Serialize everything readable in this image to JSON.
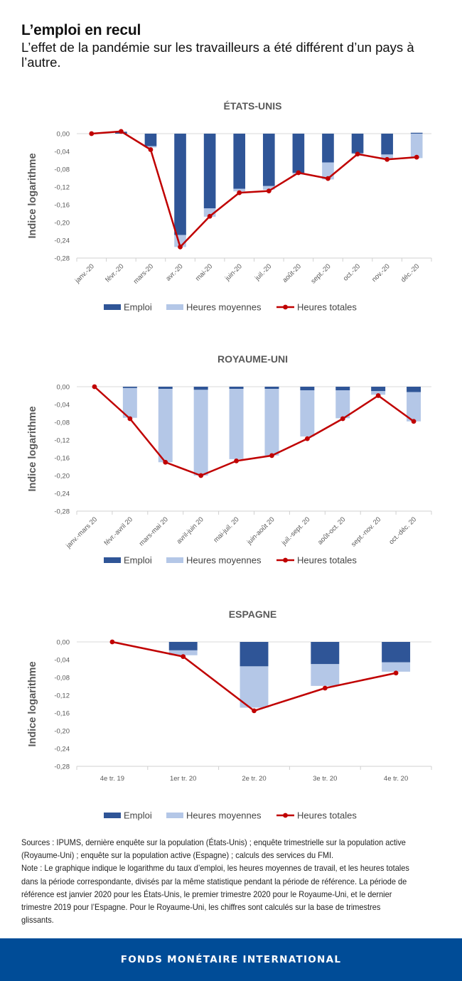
{
  "header": {
    "title": "L’emploi en recul",
    "subtitle": "L’effet de la pandémie sur les travailleurs a été différent d’un pays à l’autre."
  },
  "colors": {
    "emploi": "#2f5597",
    "heures_moyennes": "#b4c7e7",
    "heures_totales": "#c00000",
    "footer": "#004c97"
  },
  "chart_data": [
    {
      "type": "bar",
      "title": "ÉTATS-UNIS",
      "ylabel": "Indice logarithme",
      "ylim": [
        -0.28,
        0.0
      ],
      "yticks": [
        "0,00",
        "-0,04",
        "-0,08",
        "-0,12",
        "-0,16",
        "-0,20",
        "-0,24",
        "-0,28"
      ],
      "categories": [
        "janv.-20",
        "févr.-20",
        "mars-20",
        "avr.-20",
        "mai-20",
        "juin-20",
        "juil.-20",
        "août-20",
        "sept.-20",
        "oct.-20",
        "nov.-20",
        "déc.-20"
      ],
      "series": [
        {
          "name": "Emploi",
          "type": "bar",
          "values": [
            0.0,
            0.004,
            -0.028,
            -0.228,
            -0.168,
            -0.124,
            -0.118,
            -0.088,
            -0.065,
            -0.044,
            -0.047,
            0.002
          ]
        },
        {
          "name": "Heures moyennes",
          "type": "bar",
          "values": [
            0.0,
            0.001,
            -0.003,
            -0.027,
            -0.019,
            -0.006,
            -0.008,
            -0.004,
            -0.038,
            -0.002,
            -0.009,
            -0.055
          ]
        },
        {
          "name": "Heures totales",
          "type": "line",
          "values": [
            0.0,
            0.005,
            -0.036,
            -0.255,
            -0.186,
            -0.133,
            -0.129,
            -0.088,
            -0.101,
            -0.046,
            -0.058,
            -0.053
          ]
        }
      ],
      "legend": [
        "Emploi",
        "Heures moyennes",
        "Heures totales"
      ],
      "rotate_ticks": true
    },
    {
      "type": "bar",
      "title": "ROYAUME-UNI",
      "ylabel": "Indice logarithme",
      "ylim": [
        -0.28,
        0.0
      ],
      "yticks": [
        "0,00",
        "-0,04",
        "-0,08",
        "-0,12",
        "-0,16",
        "-0,20",
        "-0,24",
        "-0,28"
      ],
      "categories": [
        "janv.-mars 20",
        "févr.-avril 20",
        "mars-mai 20",
        "avril-juin 20",
        "mai-juil. 20",
        "juin-août 20",
        "juil.-sept. 20",
        "août-oct. 20",
        "sept.-nov. 20",
        "oct.-déc. 20"
      ],
      "series": [
        {
          "name": "Emploi",
          "type": "bar",
          "values": [
            0.0,
            -0.003,
            -0.005,
            -0.007,
            -0.005,
            -0.005,
            -0.008,
            -0.008,
            -0.01,
            -0.012
          ]
        },
        {
          "name": "Heures moyennes",
          "type": "bar",
          "values": [
            0.0,
            -0.067,
            -0.165,
            -0.193,
            -0.158,
            -0.15,
            -0.104,
            -0.063,
            -0.008,
            -0.066
          ]
        },
        {
          "name": "Heures totales",
          "type": "line",
          "values": [
            0.0,
            -0.072,
            -0.17,
            -0.2,
            -0.167,
            -0.155,
            -0.117,
            -0.072,
            -0.02,
            -0.078
          ]
        }
      ],
      "legend": [
        "Emploi",
        "Heures moyennes",
        "Heures totales"
      ],
      "rotate_ticks": true
    },
    {
      "type": "bar",
      "title": "ESPAGNE",
      "ylabel": "Indice logarithme",
      "ylim": [
        -0.28,
        0.0
      ],
      "yticks": [
        "0,00",
        "-0,04",
        "-0,08",
        "-0,12",
        "-0,16",
        "-0,20",
        "-0,24",
        "-0,28"
      ],
      "categories": [
        "4e tr. 19",
        "1er tr. 20",
        "2e tr. 20",
        "3e tr. 20",
        "4e tr. 20"
      ],
      "series": [
        {
          "name": "Emploi",
          "type": "bar",
          "values": [
            0.0,
            -0.019,
            -0.055,
            -0.05,
            -0.046
          ]
        },
        {
          "name": "Heures moyennes",
          "type": "bar",
          "values": [
            0.0,
            -0.011,
            -0.093,
            -0.049,
            -0.021
          ]
        },
        {
          "name": "Heures totales",
          "type": "line",
          "values": [
            0.0,
            -0.033,
            -0.155,
            -0.104,
            -0.07
          ]
        }
      ],
      "legend": [
        "Emploi",
        "Heures moyennes",
        "Heures totales"
      ],
      "rotate_ticks": false
    }
  ],
  "notes": {
    "sources": "Sources : IPUMS, dernière enquête sur la population (États-Unis) ; enquête trimestrielle sur la population active (Royaume-Uni) ; enquête sur la population active (Espagne) ; calculs des services du FMI.",
    "note": "Note : Le graphique indique le logarithme du taux d’emploi, les heures moyennes de travail, et les heures totales dans la période correspondante, divisés par la même statistique pendant la période de référence. La période de référence est janvier 2020 pour les États-Unis, le premier trimestre 2020 pour le Royaume-Uni, et le dernier trimestre 2019 pour l’Espagne. Pour le Royaume-Uni, les chiffres sont calculés sur la base de trimestres glissants."
  },
  "footer": {
    "label": "FONDS MONÉTAIRE INTERNATIONAL"
  }
}
